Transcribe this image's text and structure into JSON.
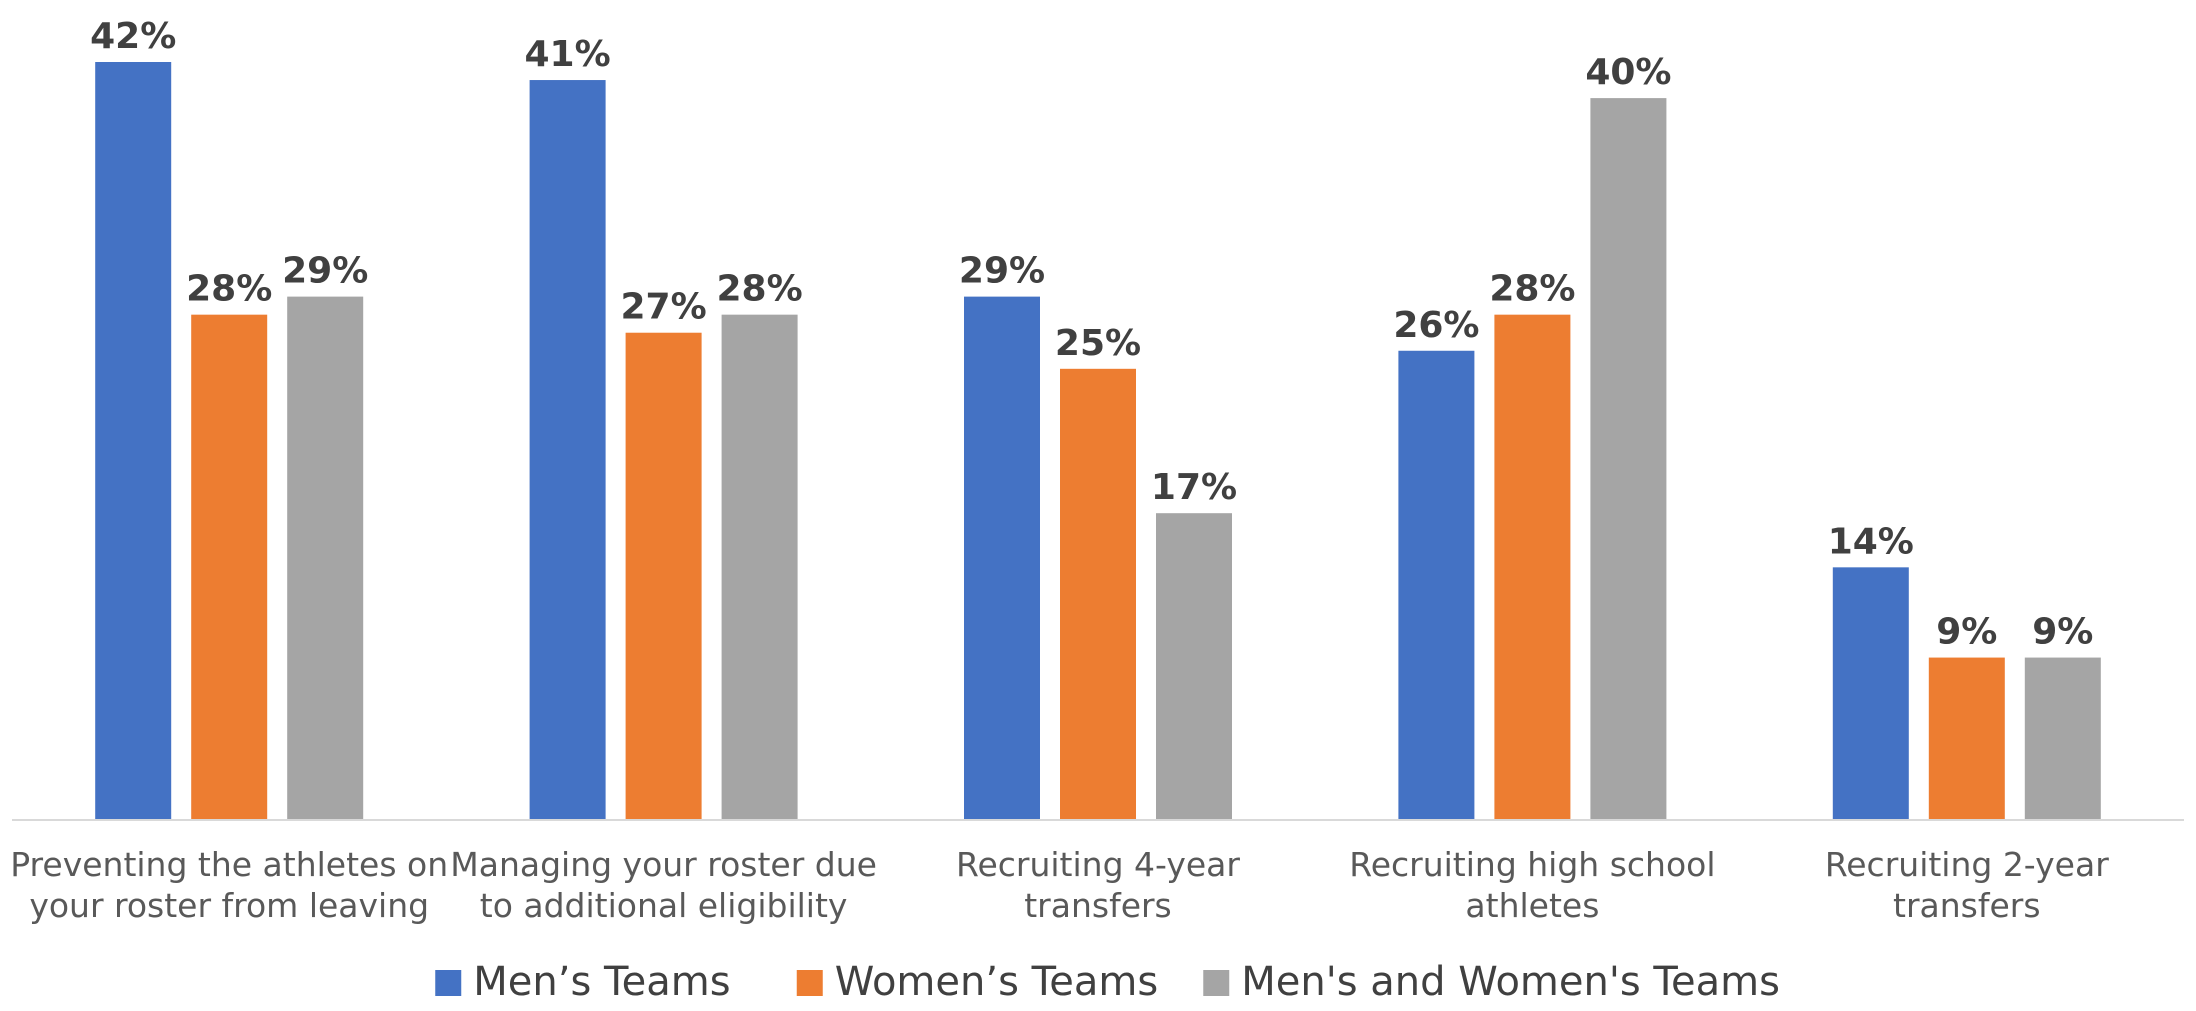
{
  "chart_data": {
    "type": "bar",
    "categories": [
      [
        "Preventing the athletes on",
        "your roster from leaving"
      ],
      [
        "Managing your roster due",
        "to additional eligibility"
      ],
      [
        "Recruiting 4-year",
        "transfers"
      ],
      [
        "Recruiting high school",
        "athletes"
      ],
      [
        "Recruiting 2-year",
        "transfers"
      ]
    ],
    "series": [
      {
        "name": "Men’s Teams",
        "color": "#4472C4",
        "values": [
          42,
          41,
          29,
          26,
          14
        ]
      },
      {
        "name": "Women’s Teams",
        "color": "#ED7D31",
        "values": [
          28,
          27,
          25,
          28,
          9
        ]
      },
      {
        "name": "Men's and Women's Teams",
        "color": "#A5A5A5",
        "values": [
          29,
          28,
          17,
          40,
          9
        ]
      }
    ],
    "value_suffix": "%",
    "ylim": [
      0,
      42
    ],
    "grid": false,
    "legend_position": "bottom",
    "title": "",
    "xlabel": "",
    "ylabel": ""
  }
}
